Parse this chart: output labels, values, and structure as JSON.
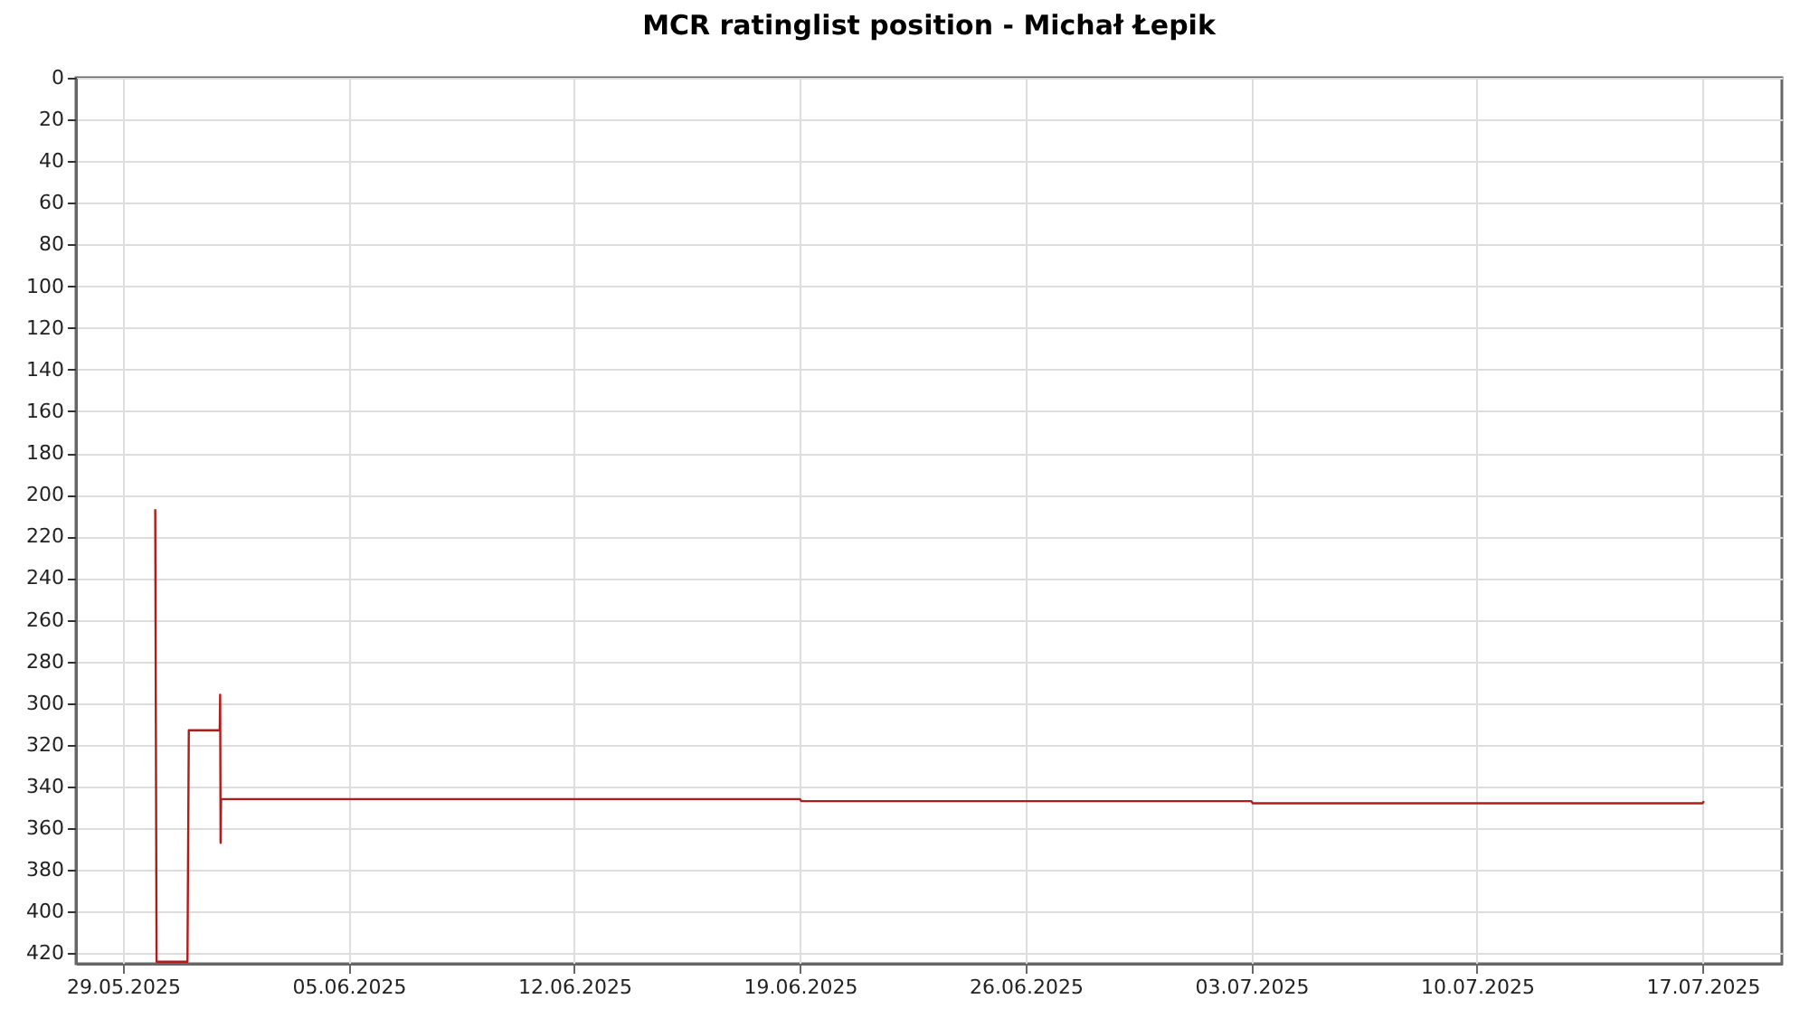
{
  "chart_data": {
    "type": "line",
    "title": "MCR ratinglist position - Michał Łepik",
    "x": [
      "2025-05-30T00:00",
      "2025-05-30T01:00",
      "2025-05-31T00:00",
      "2025-05-31T01:00",
      "2025-06-01T00:00",
      "2025-06-01T00:20",
      "2025-06-01T00:40",
      "2025-06-01T01:00",
      "2025-06-19T00:00",
      "2025-06-19T01:00",
      "2025-07-03T00:00",
      "2025-07-03T01:00",
      "2025-07-17T00:00",
      "2025-07-17T01:00"
    ],
    "series": [
      {
        "color": "#b01c1c",
        "values": [
          207,
          424,
          424,
          313,
          313,
          296,
          367,
          346,
          346,
          347,
          347,
          348,
          348,
          347
        ]
      }
    ],
    "xlim": [
      "2025-05-27T13:00",
      "2025-07-19T11:00"
    ],
    "xticks": [
      {
        "value": "2025-05-29",
        "label": "29.05.2025"
      },
      {
        "value": "2025-06-05",
        "label": "05.06.2025"
      },
      {
        "value": "2025-06-12",
        "label": "12.06.2025"
      },
      {
        "value": "2025-06-19",
        "label": "19.06.2025"
      },
      {
        "value": "2025-06-26",
        "label": "26.06.2025"
      },
      {
        "value": "2025-07-03",
        "label": "03.07.2025"
      },
      {
        "value": "2025-07-10",
        "label": "10.07.2025"
      },
      {
        "value": "2025-07-17",
        "label": "17.07.2025"
      }
    ],
    "ylim": [
      425,
      0
    ],
    "yticks": [
      0,
      20,
      40,
      60,
      80,
      100,
      120,
      140,
      160,
      180,
      200,
      220,
      240,
      260,
      280,
      300,
      320,
      340,
      360,
      380,
      400,
      420
    ],
    "grid": true,
    "legend": false,
    "marker": "none",
    "line_style": "solid"
  }
}
